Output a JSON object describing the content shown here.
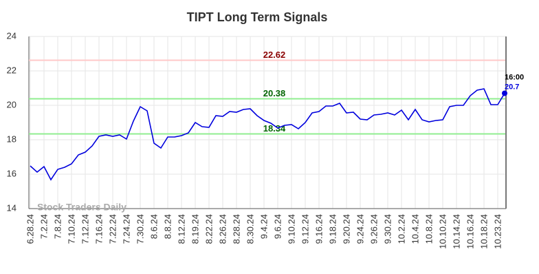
{
  "chart_data": {
    "type": "line",
    "title": "TIPT Long Term Signals",
    "categories": [
      "6.28.24",
      null,
      "7.2.24",
      null,
      "7.8.24",
      null,
      "7.10.24",
      null,
      "7.12.24",
      null,
      "7.16.24",
      null,
      "7.22.24",
      null,
      "7.24.24",
      null,
      "7.30.24",
      null,
      "8.6.24",
      null,
      "8.8.24",
      null,
      "8.12.24",
      null,
      "8.19.24",
      null,
      "8.22.24",
      null,
      "8.26.24",
      null,
      "8.28.24",
      null,
      "8.30.24",
      null,
      "9.4.24",
      null,
      "9.6.24",
      null,
      "9.10.24",
      null,
      "9.12.24",
      null,
      "9.16.24",
      null,
      "9.18.24",
      null,
      "9.20.24",
      null,
      "9.24.24",
      null,
      "9.26.24",
      null,
      "9.30.24",
      null,
      "10.2.24",
      null,
      "10.4.24",
      null,
      "10.8.24",
      null,
      "10.10.24",
      null,
      "10.14.24",
      null,
      "10.16.24",
      null,
      "10.18.24",
      null,
      "10.23.24",
      null
    ],
    "values": [
      16.48,
      16.12,
      16.44,
      15.68,
      16.28,
      16.4,
      16.6,
      17.12,
      17.28,
      17.64,
      18.2,
      18.28,
      18.2,
      18.28,
      18.04,
      19.08,
      19.92,
      19.68,
      17.8,
      17.52,
      18.16,
      18.16,
      18.24,
      18.4,
      19.0,
      18.76,
      18.72,
      19.4,
      19.36,
      19.64,
      19.6,
      19.76,
      19.8,
      19.4,
      19.12,
      18.96,
      18.68,
      18.84,
      18.88,
      18.64,
      19.0,
      19.56,
      19.64,
      19.96,
      19.96,
      20.12,
      19.56,
      19.6,
      19.2,
      19.16,
      19.44,
      19.48,
      19.56,
      19.44,
      19.72,
      19.16,
      19.76,
      19.16,
      19.04,
      19.12,
      19.16,
      19.92,
      20.0,
      20.0,
      20.56,
      20.88,
      20.96,
      20.04,
      20.04,
      20.7
    ],
    "color": "#0000dd",
    "ylim": [
      14,
      24
    ],
    "yticks": [
      14,
      16,
      18,
      20,
      22,
      24
    ],
    "grid": true,
    "hlines": [
      {
        "value": 22.62,
        "color": "#ffc8c8",
        "text_color": "#8b0000"
      },
      {
        "value": 20.38,
        "color": "#90ee90",
        "text_color": "#006400"
      },
      {
        "value": 18.34,
        "color": "#90ee90",
        "text_color": "#006400"
      }
    ],
    "last_point_time": "16:00",
    "watermark": "Stock Traders Daily"
  }
}
